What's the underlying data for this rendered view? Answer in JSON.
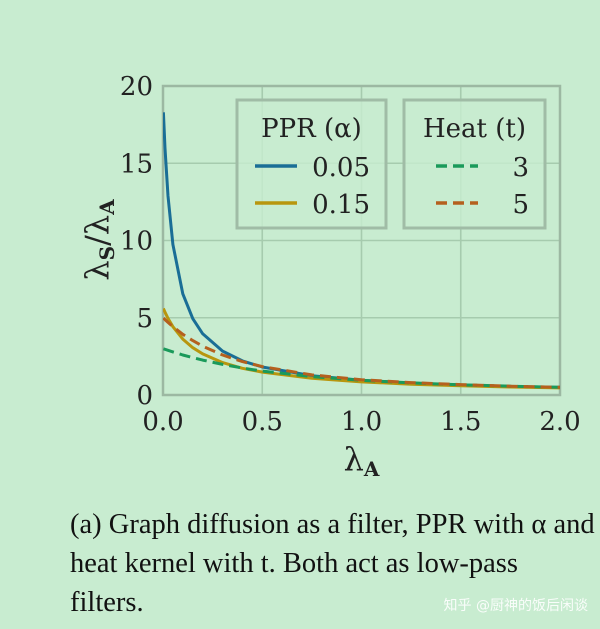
{
  "chart_data": {
    "type": "line",
    "xlabel": "λA",
    "ylabel": "λS/λA",
    "xlim": [
      0,
      2.0
    ],
    "ylim": [
      0,
      20
    ],
    "xticks": [
      "0.0",
      "0.5",
      "1.0",
      "1.5",
      "2.0"
    ],
    "yticks": [
      "0",
      "5",
      "10",
      "15",
      "20"
    ],
    "grid": true,
    "x": [
      0.002,
      0.01,
      0.025,
      0.05,
      0.1,
      0.15,
      0.2,
      0.3,
      0.4,
      0.5,
      0.75,
      1.0,
      1.25,
      1.5,
      1.75,
      2.0
    ],
    "legends": [
      {
        "title": "PPR (α)",
        "placement": "top-center"
      },
      {
        "title": "Heat (t)",
        "placement": "top-right"
      }
    ],
    "series": [
      {
        "name": "0.05",
        "group": "PPR (α)",
        "style": "solid",
        "color": "#1a6e96",
        "values": [
          18.3,
          15.97,
          12.88,
          9.74,
          6.55,
          4.94,
          3.96,
          2.84,
          2.21,
          1.81,
          1.25,
          0.95,
          0.77,
          0.65,
          0.55,
          0.49
        ]
      },
      {
        "name": "0.15",
        "group": "PPR (α)",
        "style": "solid",
        "color": "#b8960e",
        "values": [
          5.6,
          5.36,
          4.96,
          4.42,
          3.62,
          3.06,
          2.66,
          2.1,
          1.73,
          1.48,
          1.08,
          0.85,
          0.7,
          0.6,
          0.52,
          0.46
        ]
      },
      {
        "name": "3",
        "group": "Heat (t)",
        "style": "dashed",
        "color": "#1a9a5a",
        "values": [
          2.99,
          2.96,
          2.89,
          2.79,
          2.59,
          2.42,
          2.26,
          1.98,
          1.75,
          1.55,
          1.19,
          0.95,
          0.78,
          0.66,
          0.57,
          0.5
        ]
      },
      {
        "name": "5",
        "group": "Heat (t)",
        "style": "dashed",
        "color": "#b5601e",
        "values": [
          4.98,
          4.88,
          4.7,
          4.42,
          3.93,
          3.52,
          3.16,
          2.59,
          2.16,
          1.84,
          1.3,
          0.99,
          0.8,
          0.67,
          0.57,
          0.5
        ]
      }
    ]
  },
  "caption": "(a) Graph diffusion as a filter, PPR with α and heat kernel with t. Both act as low-pass filters.",
  "watermark": "知乎 @厨神的饭后闲谈"
}
